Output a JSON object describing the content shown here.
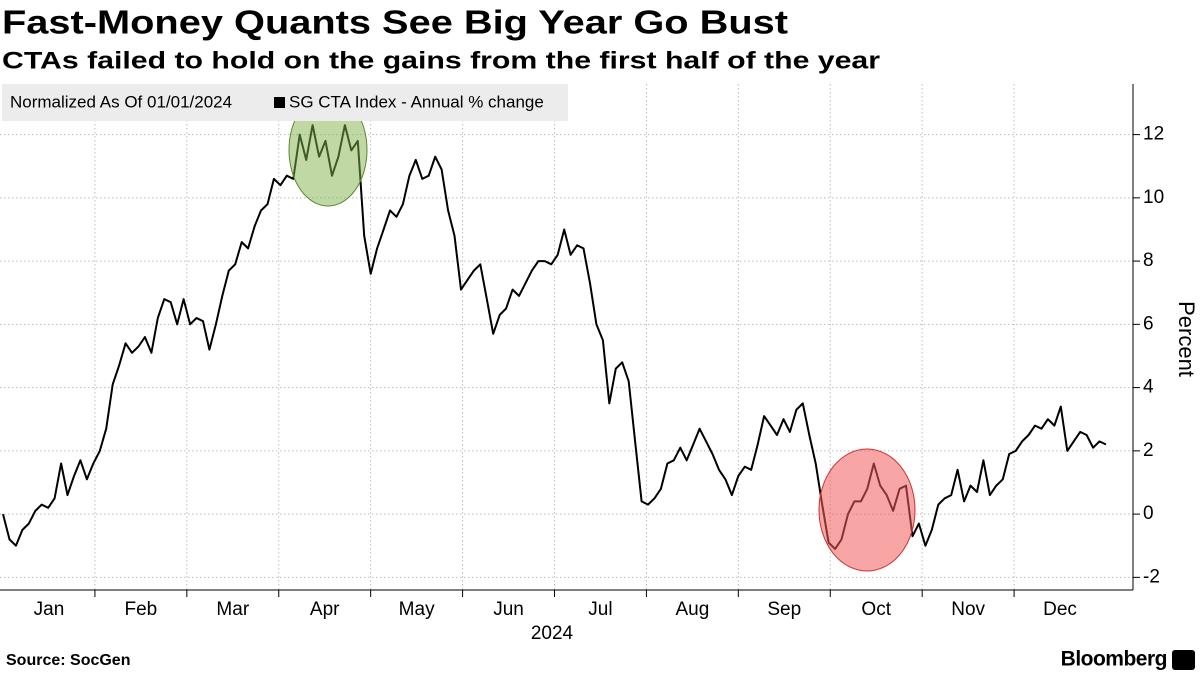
{
  "chart_data": {
    "type": "line",
    "title": "Fast-Money Quants See Big Year Go Bust",
    "subtitle": "CTAs failed to hold on the gains from the first half of the year",
    "legend_note": "Normalized As Of 01/01/2024",
    "y_label": "Percent",
    "source": "Source: SocGen",
    "brand": "Bloomberg",
    "months": [
      "Jan",
      "Feb",
      "Mar",
      "Apr",
      "May",
      "Jun",
      "Jul",
      "Aug",
      "Sep",
      "Oct",
      "Nov",
      "Dec"
    ],
    "year": "2024",
    "ylim": [
      -2.4,
      13.6
    ],
    "yticks": [
      -2,
      0,
      2,
      4,
      6,
      8,
      10,
      12
    ],
    "grid": true,
    "series": [
      {
        "name": "SG CTA Index - Annual % change",
        "color": "#000000",
        "values": [
          0,
          -0.8,
          -1.0,
          -0.5,
          -0.3,
          0.1,
          0.3,
          0.2,
          0.5,
          1.6,
          0.6,
          1.2,
          1.7,
          1.1,
          1.6,
          2.0,
          2.7,
          4.1,
          4.7,
          5.4,
          5.1,
          5.3,
          5.6,
          5.1,
          6.2,
          6.8,
          6.7,
          6.0,
          6.8,
          6.0,
          6.2,
          6.1,
          5.2,
          6.0,
          6.9,
          7.7,
          7.9,
          8.6,
          8.4,
          9.1,
          9.6,
          9.8,
          10.6,
          10.4,
          10.7,
          10.6,
          12.0,
          11.2,
          12.3,
          11.3,
          11.8,
          10.7,
          11.3,
          12.3,
          11.5,
          11.8,
          8.8,
          7.6,
          8.4,
          9.0,
          9.6,
          9.4,
          9.8,
          10.7,
          11.2,
          10.6,
          10.7,
          11.3,
          10.9,
          9.6,
          8.8,
          7.1,
          7.4,
          7.7,
          7.9,
          6.8,
          5.7,
          6.3,
          6.5,
          7.1,
          6.9,
          7.3,
          7.7,
          8.0,
          8.0,
          7.9,
          8.2,
          9.0,
          8.2,
          8.5,
          8.4,
          7.3,
          6.0,
          5.5,
          3.5,
          4.6,
          4.8,
          4.2,
          2.3,
          0.4,
          0.3,
          0.5,
          0.8,
          1.6,
          1.7,
          2.1,
          1.7,
          2.2,
          2.7,
          2.3,
          1.9,
          1.4,
          1.1,
          0.6,
          1.2,
          1.5,
          1.4,
          2.2,
          3.1,
          2.8,
          2.5,
          3.0,
          2.6,
          3.3,
          3.5,
          2.5,
          1.6,
          0.3,
          -0.9,
          -1.1,
          -0.8,
          0.0,
          0.4,
          0.4,
          0.8,
          1.6,
          0.9,
          0.6,
          0.1,
          0.8,
          0.9,
          -0.7,
          -0.3,
          -1.0,
          -0.5,
          0.3,
          0.5,
          0.6,
          1.4,
          0.4,
          0.9,
          0.7,
          1.7,
          0.6,
          0.9,
          1.1,
          1.9,
          2.0,
          2.3,
          2.5,
          2.8,
          2.7,
          3.0,
          2.8,
          3.4,
          2.0,
          2.3,
          2.6,
          2.5,
          2.1,
          2.3,
          2.2
        ]
      }
    ]
  }
}
